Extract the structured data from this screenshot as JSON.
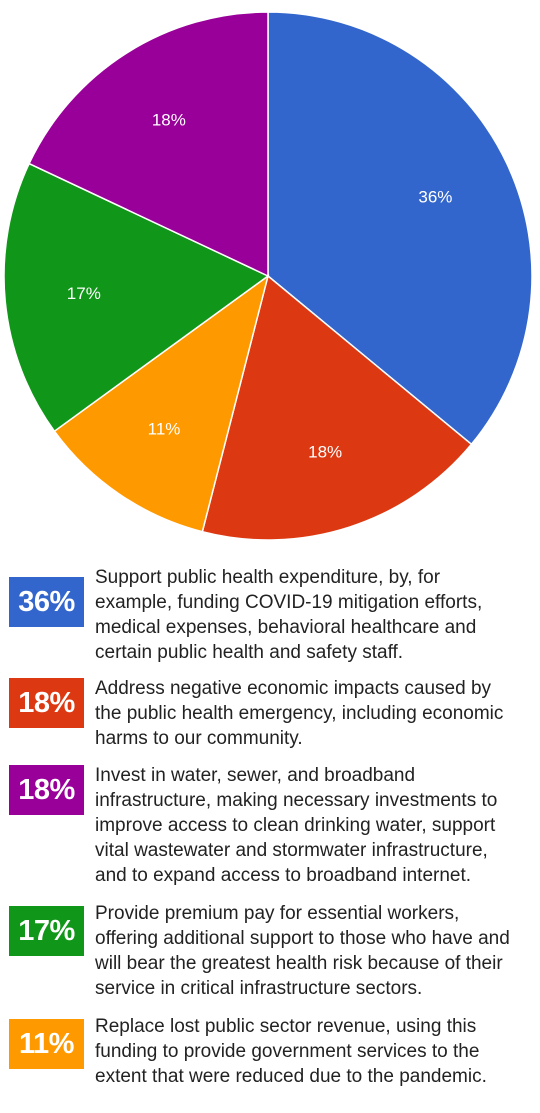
{
  "chart_data": {
    "type": "pie",
    "slices": [
      {
        "value": 36,
        "label": "36%",
        "color": "#3366cc"
      },
      {
        "value": 18,
        "label": "18%",
        "color": "#dc3912"
      },
      {
        "value": 11,
        "label": "11%",
        "color": "#ff9900"
      },
      {
        "value": 17,
        "label": "17%",
        "color": "#109618"
      },
      {
        "value": 18,
        "label": "18%",
        "color": "#990099"
      }
    ],
    "start_angle_deg": 0,
    "direction": "clockwise",
    "legend_placement": "bottom"
  },
  "legend": [
    {
      "badge": "36%",
      "color": "#3366cc",
      "text": "Support public health expenditure, by, for\nexample, funding COVID-19 mitigation efforts,\nmedical expenses, behavioral healthcare and\ncertain public health and safety staff."
    },
    {
      "badge": "18%",
      "color": "#dc3912",
      "text": "Address negative economic impacts caused by\nthe public health emergency, including economic\nharms to our community."
    },
    {
      "badge": "18%",
      "color": "#990099",
      "text": "Invest in water, sewer, and broadband\ninfrastructure, making necessary investments to\nimprove access to clean drinking water, support\nvital wastewater and stormwater infrastructure,\nand to expand access to broadband internet."
    },
    {
      "badge": "17%",
      "color": "#109618",
      "text": "Provide premium pay for essential workers,\noffering additional support to those who have and\nwill bear the greatest health risk because of their\nservice in critical infrastructure sectors."
    },
    {
      "badge": "11%",
      "color": "#ff9900",
      "text": "Replace lost public sector revenue, using this\nfunding to provide government services to the\nextent that were reduced due to the pandemic."
    }
  ]
}
